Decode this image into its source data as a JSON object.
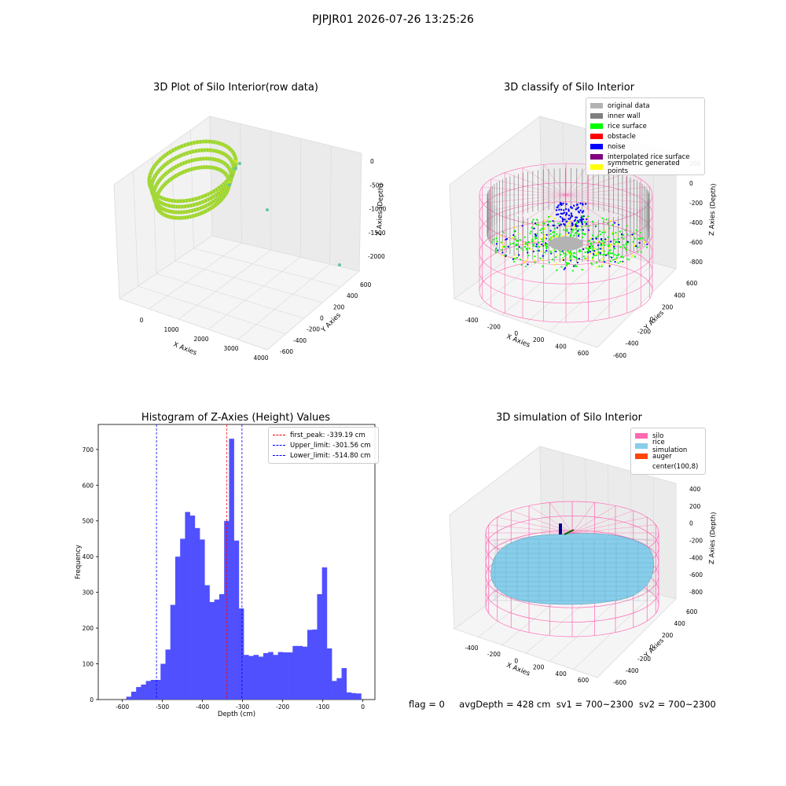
{
  "suptitle": "PJPJR01 2026-07-26 13:25:26",
  "footer": {
    "flag": "flag = 0",
    "avg": "avgDepth = 428 cm",
    "sv1": "sv1 = 700~2300",
    "sv2": "sv2 = 700~2300"
  },
  "colors": {
    "original": "#b3b3b3",
    "inner_wall": "#808080",
    "rice_surface": "#00ff00",
    "obstacle": "#ff0000",
    "noise": "#0000ff",
    "interp": "#800080",
    "symmetric": "#ffff00",
    "silo": "#ff69b4",
    "rice_sim": "#87ceeb",
    "auger": "#ff4500",
    "hist_bar": "#5050ff",
    "first_peak": "#ff0000",
    "limit": "#0000ff"
  },
  "chart_data": [
    {
      "type": "scatter",
      "title": "3D Plot of Silo Interior(row data)",
      "xlabel": "X Axies",
      "ylabel": "Y Axies",
      "zlabel": "Z Axies (Depth)",
      "x_ticks": [
        "0",
        "1000",
        "2000",
        "3000",
        "4000"
      ],
      "y_ticks": [
        "-600",
        "-400",
        "-200",
        "0",
        "200",
        "400",
        "600"
      ],
      "z_ticks": [
        "0",
        "-500",
        "-1000",
        "-1500",
        "-2000"
      ],
      "xlim": [
        -600,
        4200
      ],
      "ylim": [
        -650,
        650
      ],
      "zlim": [
        -2200,
        0
      ]
    },
    {
      "type": "scatter",
      "title": "3D classify of Silo Interior",
      "xlabel": "X Axies",
      "ylabel": "Y Axies",
      "zlabel": "Z Axies (Depth)",
      "x_ticks": [
        "-400",
        "-200",
        "0",
        "200",
        "400",
        "600"
      ],
      "y_ticks": [
        "-600",
        "-400",
        "-200",
        "0",
        "200",
        "400",
        "600"
      ],
      "z_ticks": [
        "200",
        "0",
        "-200",
        "-400",
        "-600",
        "-800"
      ],
      "legend": [
        "original data",
        "inner wall",
        "rice surface",
        "obstacle",
        "noise",
        "interpolated rice surface",
        "symmetric generated points"
      ]
    },
    {
      "type": "bar",
      "title": "Histogram of Z-Axies (Height) Values",
      "xlabel": "Depth (cm)",
      "ylabel": "Frequency",
      "xlim": [
        -660,
        30
      ],
      "ylim": [
        0,
        770
      ],
      "x_ticks": [
        -600,
        -500,
        -400,
        -300,
        -200,
        -100,
        0
      ],
      "y_ticks": [
        0,
        100,
        200,
        300,
        400,
        500,
        600,
        700
      ],
      "bin_start": -590,
      "bin_width": 12.2,
      "values": [
        8,
        22,
        35,
        42,
        52,
        55,
        55,
        100,
        140,
        265,
        400,
        450,
        525,
        515,
        480,
        448,
        320,
        273,
        280,
        295,
        500,
        730,
        445,
        255,
        125,
        122,
        125,
        120,
        130,
        133,
        125,
        133,
        132,
        132,
        150,
        150,
        148,
        195,
        196,
        295,
        370,
        143,
        52,
        60,
        88,
        20,
        18,
        17
      ],
      "lines": [
        {
          "label": "first_peak: -339.19 cm",
          "x": -339.19,
          "color": "#ff0000"
        },
        {
          "label": "Upper_limit: -301.56 cm",
          "x": -301.56,
          "color": "#0000ff"
        },
        {
          "label": "Lower_limit: -514.80 cm",
          "x": -514.8,
          "color": "#0000ff"
        }
      ]
    },
    {
      "type": "scatter",
      "title": "3D simulation of Silo Interior",
      "xlabel": "X Axies",
      "ylabel": "Y Axies",
      "zlabel": "Z Axies (Depth)",
      "x_ticks": [
        "-400",
        "-200",
        "0",
        "200",
        "400",
        "600"
      ],
      "y_ticks": [
        "-600",
        "-400",
        "-200",
        "0",
        "200",
        "400",
        "600"
      ],
      "z_ticks": [
        "400",
        "200",
        "0",
        "-200",
        "-400",
        "-600",
        "-800"
      ],
      "legend": [
        "silo",
        "rice simulation",
        "auger",
        "center(100,8)"
      ]
    }
  ]
}
